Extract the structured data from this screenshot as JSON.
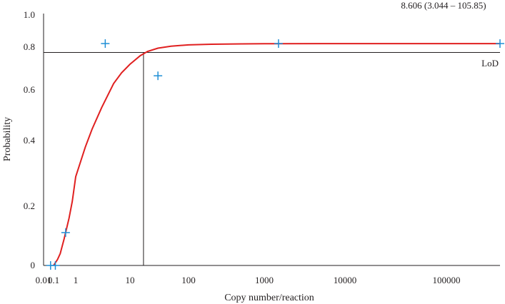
{
  "chart_data": {
    "type": "scatter",
    "title": "",
    "annotation": "8.606 (3.044 – 105.85)",
    "lod_label": "LoD",
    "xlabel": "Copy number/reaction",
    "ylabel": "Probability",
    "x_scale": "log",
    "x_ticks": [
      0.01,
      0.1,
      1,
      10,
      100,
      1000,
      10000,
      100000
    ],
    "x_tick_labels": [
      "0.01",
      "0.1",
      "1",
      "10",
      "100",
      "1000",
      "10000",
      "100000"
    ],
    "y_ticks": [
      0,
      0.2,
      0.4,
      0.6,
      0.8,
      1.0
    ],
    "y_tick_labels": [
      "0",
      "0.2",
      "0.4",
      "0.6",
      "0.8",
      "1.0"
    ],
    "lod_x": 17,
    "lod_y": 0.775,
    "series": [
      {
        "kind": "points",
        "marker": "plus",
        "color": "#1f8fd6",
        "x": [
          0.05,
          0.12,
          0.35,
          3.5,
          30,
          1500,
          400000
        ],
        "y": [
          0,
          0,
          0.111,
          0.822,
          0.666,
          0.822,
          0.822
        ]
      },
      {
        "kind": "curve",
        "color": "#e02020",
        "x": [
          0.1,
          0.15,
          0.2,
          0.3,
          0.5,
          0.7,
          1,
          1.5,
          2,
          3,
          5,
          7,
          10,
          15,
          20,
          30,
          50,
          100,
          200,
          500,
          1000,
          5000,
          10000,
          50000,
          100000,
          400000
        ],
        "y": [
          0.0,
          0.02,
          0.04,
          0.09,
          0.16,
          0.215,
          0.29,
          0.38,
          0.445,
          0.53,
          0.63,
          0.68,
          0.72,
          0.76,
          0.78,
          0.795,
          0.806,
          0.814,
          0.818,
          0.82,
          0.821,
          0.822,
          0.822,
          0.822,
          0.822,
          0.822
        ]
      }
    ],
    "grid": false,
    "legend": "none"
  }
}
